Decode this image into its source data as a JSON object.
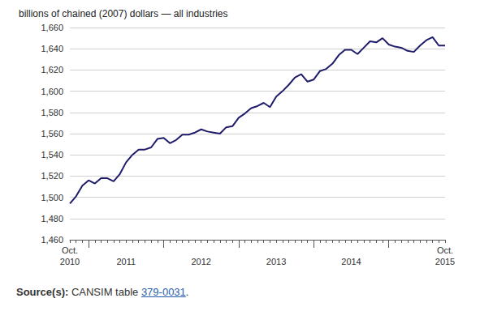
{
  "chart_data": {
    "type": "line",
    "title": "billions of chained (2007) dollars — all industries",
    "categories": [
      "Oct.\n2010",
      null,
      null,
      null,
      null,
      null,
      null,
      null,
      null,
      "2011",
      null,
      null,
      null,
      null,
      null,
      null,
      null,
      null,
      null,
      null,
      null,
      "2012",
      null,
      null,
      null,
      null,
      null,
      null,
      null,
      null,
      null,
      null,
      null,
      "2013",
      null,
      null,
      null,
      null,
      null,
      null,
      null,
      null,
      null,
      null,
      null,
      "2014",
      null,
      null,
      null,
      null,
      null,
      null,
      null,
      null,
      null,
      null,
      null,
      null,
      null,
      null,
      "Oct.\n2015"
    ],
    "values": [
      1494,
      1501,
      1511,
      1516,
      1513,
      1518,
      1518,
      1515,
      1522,
      1533,
      1540,
      1545,
      1545,
      1547,
      1555,
      1556,
      1551,
      1554,
      1559,
      1559,
      1561,
      1564,
      1562,
      1561,
      1560,
      1566,
      1567,
      1575,
      1579,
      1584,
      1586,
      1589,
      1585,
      1595,
      1600,
      1606,
      1613,
      1616,
      1609,
      1611,
      1619,
      1621,
      1626,
      1634,
      1639,
      1639,
      1635,
      1641,
      1647,
      1646,
      1650,
      1644,
      1642,
      1641,
      1638,
      1637,
      1643,
      1648,
      1651,
      1643,
      1643
    ],
    "color": "#1f1d6b",
    "ylim": [
      1460,
      1660
    ],
    "yticks": [
      {
        "value": 1460,
        "label": "1,460"
      },
      {
        "value": 1480,
        "label": "1,480"
      },
      {
        "value": 1500,
        "label": "1,500"
      },
      {
        "value": 1520,
        "label": "1,520"
      },
      {
        "value": 1540,
        "label": "1,540"
      },
      {
        "value": 1560,
        "label": "1,560"
      },
      {
        "value": 1580,
        "label": "1,580"
      },
      {
        "value": 1600,
        "label": "1,600"
      },
      {
        "value": 1620,
        "label": "1,620"
      },
      {
        "value": 1640,
        "label": "1,640"
      },
      {
        "value": 1660,
        "label": "1,660"
      }
    ],
    "grid": true,
    "source": {
      "label": "Source(s):",
      "text": "CANSIM table",
      "link": "379-0031",
      "end": "."
    }
  }
}
